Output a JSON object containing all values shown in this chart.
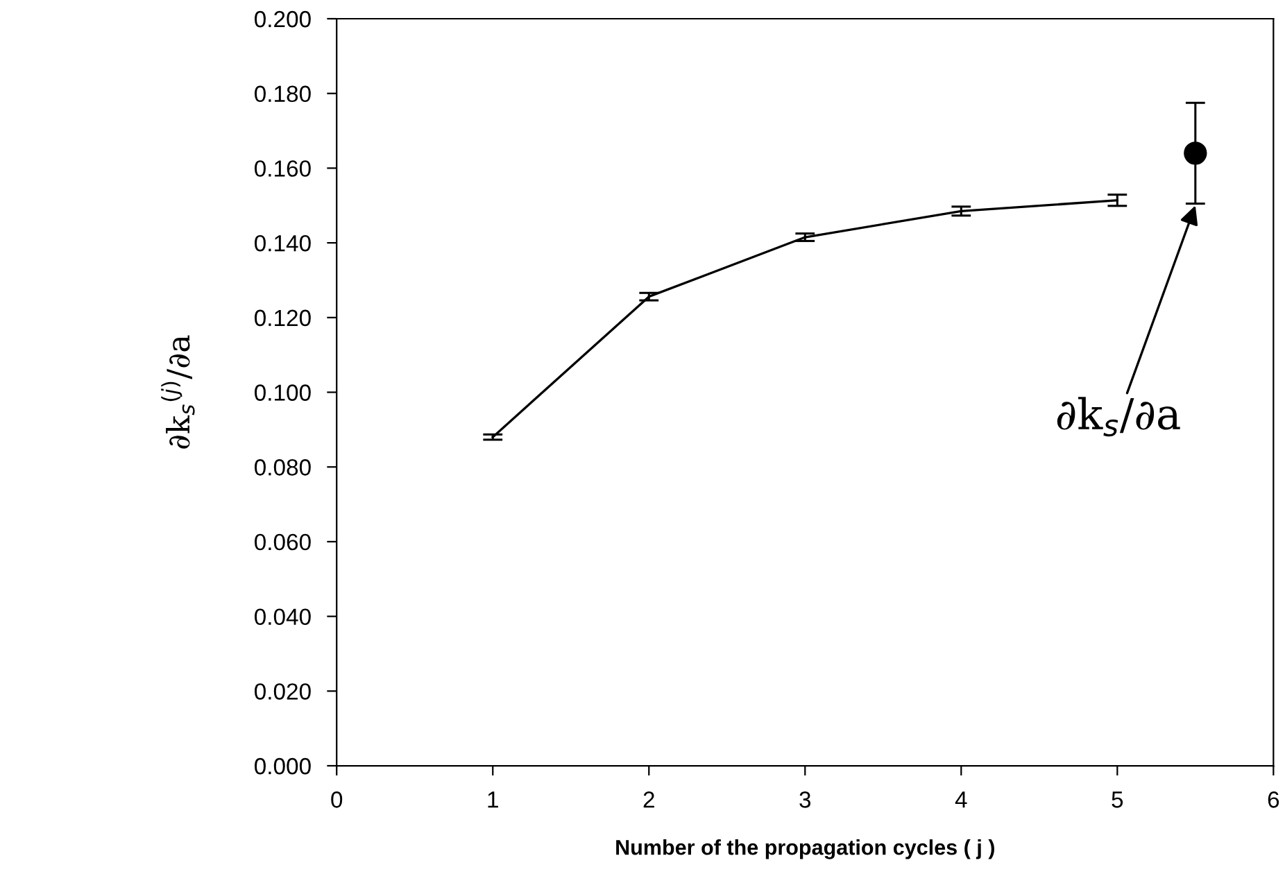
{
  "chart_data": {
    "type": "line",
    "xlabel": "Number of the propagation cycles ( j )",
    "ylabel": "∂k$_{s}$$^{(j)}$/∂a",
    "xlim": [
      0,
      6
    ],
    "xticks": [
      0,
      1,
      2,
      3,
      4,
      5,
      6
    ],
    "ylim": [
      0,
      0.2
    ],
    "yticks": [
      {
        "value": 0,
        "label": "0.000"
      },
      {
        "value": 0.02,
        "label": "0.020"
      },
      {
        "value": 0.04,
        "label": "0.040"
      },
      {
        "value": 0.06,
        "label": "0.060"
      },
      {
        "value": 0.08,
        "label": "0.080"
      },
      {
        "value": 0.1,
        "label": "0.100"
      },
      {
        "value": 0.12,
        "label": "0.120"
      },
      {
        "value": 0.14,
        "label": "0.140"
      },
      {
        "value": 0.16,
        "label": "0.160"
      },
      {
        "value": 0.18,
        "label": "0.180"
      },
      {
        "value": 0.2,
        "label": "0.200"
      }
    ],
    "grid": false,
    "legend": false,
    "series": [
      {
        "color": "#000000",
        "marker": "none",
        "line_style": "solid",
        "x": [
          1,
          2,
          3,
          4,
          5
        ],
        "values": [
          0.088,
          0.1256,
          0.1415,
          0.1485,
          0.1514
        ],
        "errors": [
          0.0007,
          0.001,
          0.001,
          0.0012,
          0.0015
        ]
      },
      {
        "type": "scatter",
        "color": "#000000",
        "marker": "circle",
        "x": [
          5.5
        ],
        "values": [
          0.164
        ],
        "errors": [
          0.0135
        ]
      }
    ],
    "annotations": [
      {
        "text": "∂k$_{s}$/∂a",
        "x": 5.5,
        "y": 0.15
      }
    ]
  }
}
